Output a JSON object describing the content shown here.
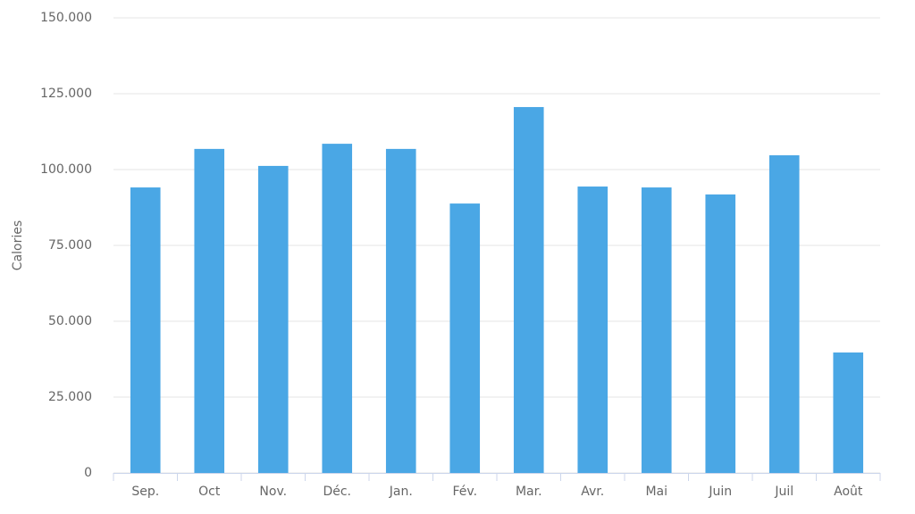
{
  "chart_data": {
    "type": "bar",
    "y_label": "Calories",
    "categories": [
      "Sep.",
      "Oct",
      "Nov.",
      "Déc.",
      "Jan.",
      "Fév.",
      "Mar.",
      "Avr.",
      "Mai",
      "Juin",
      "Juil",
      "Août"
    ],
    "values": [
      94100,
      106800,
      101200,
      108500,
      106800,
      88800,
      120600,
      94400,
      94100,
      91800,
      104700,
      39700
    ],
    "color": "#4aa7e5",
    "ylim": [
      0,
      150000
    ],
    "yticks": [
      0,
      {
        "value": 25000,
        "label": "25.000"
      },
      {
        "value": 50000,
        "label": "50.000"
      },
      {
        "value": 75000,
        "label": "75.000"
      },
      {
        "value": 100000,
        "label": "100.000"
      },
      {
        "value": 125000,
        "label": "125.000"
      },
      {
        "value": 150000,
        "label": "150.000"
      }
    ],
    "grid": true
  }
}
